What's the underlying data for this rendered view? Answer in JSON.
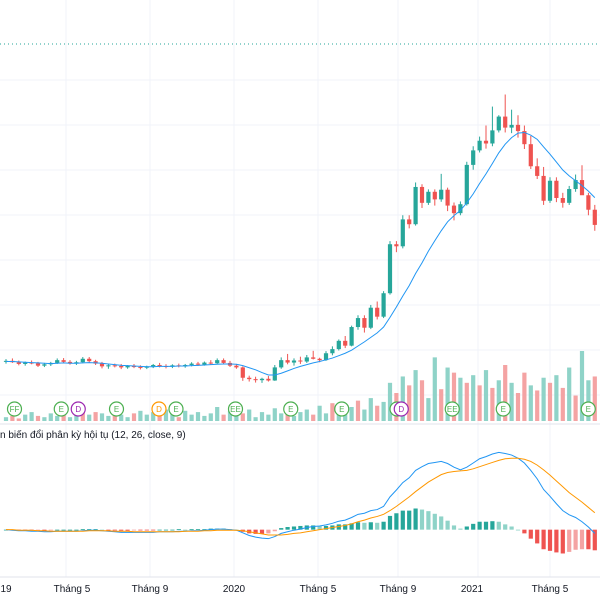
{
  "macd_title": "n biến đổi phân kỳ hội tụ (12, 26, close, 9)",
  "chart_data": {
    "type": "candlestick",
    "title": "",
    "x_tick_labels": [
      "19",
      "Tháng 5",
      "Tháng 9",
      "2020",
      "Tháng 5",
      "Tháng 9",
      "2021",
      "Tháng 5"
    ],
    "colors": {
      "up": "#26a69a",
      "down": "#ef5350",
      "vol_up": "#8fd3c8",
      "vol_down": "#f4a3a3",
      "ma": "#2196f3",
      "macd": "#2196f3",
      "signal": "#ff9800",
      "event_green": "#4caf50",
      "event_purple": "#9c27b0",
      "event_orange": "#ff9800",
      "dotted_line": "#26a69a"
    },
    "price_range": [
      0,
      100
    ],
    "price": [
      [
        12.5,
        13.3,
        12.0,
        12.8
      ],
      [
        12.8,
        13.5,
        12.2,
        12.4
      ],
      [
        12.4,
        12.9,
        11.5,
        11.9
      ],
      [
        11.9,
        12.6,
        11.4,
        12.3
      ],
      [
        12.3,
        12.9,
        11.8,
        12.1
      ],
      [
        12.1,
        12.5,
        11.0,
        11.4
      ],
      [
        11.4,
        12.2,
        11.0,
        11.8
      ],
      [
        11.8,
        12.5,
        11.3,
        12.2
      ],
      [
        12.2,
        13.5,
        11.9,
        13.0
      ],
      [
        13.0,
        13.6,
        12.1,
        12.5
      ],
      [
        12.5,
        13.0,
        11.7,
        12.0
      ],
      [
        12.0,
        12.8,
        11.6,
        12.4
      ],
      [
        12.4,
        13.9,
        12.1,
        13.4
      ],
      [
        13.4,
        13.9,
        12.3,
        12.7
      ],
      [
        12.7,
        13.1,
        11.6,
        12.0
      ],
      [
        12.0,
        12.5,
        10.6,
        11.2
      ],
      [
        11.2,
        11.9,
        10.5,
        11.5
      ],
      [
        11.5,
        12.0,
        10.9,
        11.3
      ],
      [
        11.3,
        11.9,
        10.4,
        10.9
      ],
      [
        10.9,
        11.6,
        10.5,
        11.4
      ],
      [
        11.4,
        11.9,
        10.7,
        11.0
      ],
      [
        11.0,
        11.5,
        10.3,
        10.8
      ],
      [
        10.8,
        11.4,
        10.4,
        11.2
      ],
      [
        11.2,
        11.9,
        10.7,
        11.6
      ],
      [
        11.6,
        12.2,
        10.9,
        11.3
      ],
      [
        11.3,
        11.8,
        10.6,
        11.1
      ],
      [
        11.1,
        11.8,
        10.7,
        11.5
      ],
      [
        11.5,
        12.0,
        10.9,
        11.2
      ],
      [
        11.2,
        11.9,
        10.8,
        11.6
      ],
      [
        11.6,
        12.4,
        11.2,
        12.0
      ],
      [
        12.0,
        12.5,
        11.3,
        11.7
      ],
      [
        11.7,
        12.6,
        11.4,
        12.3
      ],
      [
        12.3,
        13.0,
        11.7,
        12.1
      ],
      [
        12.1,
        13.5,
        11.9,
        13.0
      ],
      [
        13.0,
        13.5,
        11.8,
        12.2
      ],
      [
        12.2,
        12.8,
        11.0,
        11.4
      ],
      [
        11.4,
        11.9,
        10.5,
        10.9
      ],
      [
        10.9,
        11.2,
        7.0,
        7.9
      ],
      [
        7.9,
        8.5,
        6.8,
        7.5
      ],
      [
        7.5,
        8.2,
        6.5,
        7.2
      ],
      [
        7.2,
        7.9,
        6.4,
        7.6
      ],
      [
        7.6,
        8.4,
        6.8,
        7.1
      ],
      [
        7.1,
        11.6,
        7.0,
        10.9
      ],
      [
        10.9,
        13.8,
        10.5,
        13.0
      ],
      [
        13.0,
        14.8,
        11.8,
        12.3
      ],
      [
        12.3,
        13.5,
        11.4,
        12.9
      ],
      [
        12.9,
        14.0,
        11.9,
        12.6
      ],
      [
        12.6,
        14.5,
        12.2,
        13.8
      ],
      [
        13.8,
        15.7,
        13.2,
        13.4
      ],
      [
        13.4,
        13.7,
        12.4,
        13.0
      ],
      [
        13.0,
        15.6,
        12.8,
        15.0
      ],
      [
        15.0,
        17.0,
        14.4,
        16.2
      ],
      [
        16.2,
        19.0,
        15.8,
        18.6
      ],
      [
        18.6,
        20.0,
        16.5,
        17.2
      ],
      [
        17.2,
        23.0,
        17.0,
        22.6
      ],
      [
        22.6,
        26.0,
        21.8,
        25.2
      ],
      [
        25.2,
        26.0,
        21.0,
        22.4
      ],
      [
        22.4,
        29.0,
        22.0,
        28.2
      ],
      [
        28.2,
        30.0,
        24.8,
        25.6
      ],
      [
        25.6,
        33.0,
        25.2,
        32.4
      ],
      [
        32.4,
        47.5,
        32.0,
        46.6
      ],
      [
        46.6,
        47.5,
        44.3,
        46.0
      ],
      [
        46.0,
        55.0,
        45.4,
        53.8
      ],
      [
        53.8,
        55.0,
        51.2,
        52.4
      ],
      [
        52.4,
        64.5,
        52.0,
        63.2
      ],
      [
        63.2,
        64.0,
        57.1,
        58.6
      ],
      [
        58.6,
        62.5,
        58.0,
        61.8
      ],
      [
        61.8,
        62.5,
        57.8,
        59.6
      ],
      [
        59.6,
        67.0,
        58.9,
        62.4
      ],
      [
        62.4,
        63.0,
        56.2,
        57.8
      ],
      [
        57.8,
        58.7,
        53.5,
        55.6
      ],
      [
        55.6,
        59.0,
        55.0,
        58.2
      ],
      [
        58.2,
        70.5,
        57.8,
        69.6
      ],
      [
        69.6,
        75.0,
        68.2,
        73.8
      ],
      [
        73.8,
        77.8,
        73.2,
        76.6
      ],
      [
        76.6,
        81.0,
        74.3,
        75.8
      ],
      [
        75.8,
        86.5,
        75.0,
        79.6
      ],
      [
        79.6,
        84.0,
        79.0,
        83.6
      ],
      [
        83.6,
        90.0,
        79.0,
        80.4
      ],
      [
        80.4,
        85.6,
        78.8,
        81.2
      ],
      [
        81.2,
        84.0,
        77.5,
        79.4
      ],
      [
        79.4,
        81.0,
        74.2,
        75.6
      ],
      [
        75.6,
        78.0,
        68.4,
        69.2
      ],
      [
        69.2,
        71.5,
        65.5,
        66.4
      ],
      [
        66.4,
        69.0,
        58.0,
        59.2
      ],
      [
        59.2,
        66.0,
        58.6,
        65.0
      ],
      [
        65.0,
        66.0,
        58.8,
        60.0
      ],
      [
        60.0,
        61.5,
        57.2,
        58.6
      ],
      [
        58.6,
        63.5,
        58.0,
        62.6
      ],
      [
        62.6,
        66.8,
        61.8,
        65.2
      ],
      [
        65.2,
        69.5,
        64.4,
        60.8
      ],
      [
        60.8,
        61.5,
        55.0,
        56.6
      ],
      [
        56.6,
        58.0,
        50.5,
        52.2
      ]
    ],
    "moving_average": [
      12.6,
      12.6,
      12.5,
      12.4,
      12.3,
      12.2,
      12.1,
      12.0,
      12.1,
      12.2,
      12.1,
      12.1,
      12.2,
      12.3,
      12.2,
      12.1,
      11.9,
      11.7,
      11.5,
      11.4,
      11.3,
      11.2,
      11.1,
      11.1,
      11.2,
      11.2,
      11.2,
      11.3,
      11.3,
      11.4,
      11.5,
      11.6,
      11.7,
      11.8,
      11.9,
      11.9,
      11.8,
      11.4,
      10.8,
      10.2,
      9.4,
      8.7,
      8.7,
      9.2,
      9.9,
      10.6,
      11.2,
      11.7,
      12.2,
      12.6,
      13.1,
      13.6,
      14.3,
      15.0,
      15.9,
      17.1,
      18.3,
      19.6,
      20.9,
      22.6,
      25.4,
      28.4,
      31.6,
      34.6,
      38.1,
      41.2,
      44.6,
      47.6,
      50.5,
      53.1,
      54.9,
      56.4,
      58.6,
      61.2,
      64.2,
      67.0,
      70.0,
      73.1,
      75.6,
      77.5,
      78.8,
      79.0,
      78.2,
      77.0,
      74.8,
      72.7,
      70.4,
      68.1,
      66.4,
      65.0,
      63.6,
      62.0,
      60.1
    ],
    "volume": [
      [
        3,
        "up"
      ],
      [
        4,
        "down"
      ],
      [
        2,
        "down"
      ],
      [
        5,
        "up"
      ],
      [
        7,
        "up"
      ],
      [
        4,
        "down"
      ],
      [
        3,
        "up"
      ],
      [
        6,
        "up"
      ],
      [
        4,
        "up"
      ],
      [
        9,
        "down"
      ],
      [
        3,
        "up"
      ],
      [
        12,
        "up"
      ],
      [
        8,
        "down"
      ],
      [
        5,
        "up"
      ],
      [
        7,
        "down"
      ],
      [
        6,
        "up"
      ],
      [
        4,
        "up"
      ],
      [
        10,
        "down"
      ],
      [
        5,
        "up"
      ],
      [
        3,
        "up"
      ],
      [
        6,
        "down"
      ],
      [
        8,
        "up"
      ],
      [
        5,
        "up"
      ],
      [
        7,
        "up"
      ],
      [
        4,
        "down"
      ],
      [
        9,
        "up"
      ],
      [
        6,
        "up"
      ],
      [
        3,
        "down"
      ],
      [
        8,
        "up"
      ],
      [
        5,
        "up"
      ],
      [
        7,
        "up"
      ],
      [
        4,
        "up"
      ],
      [
        6,
        "up"
      ],
      [
        11,
        "up"
      ],
      [
        5,
        "down"
      ],
      [
        8,
        "up"
      ],
      [
        4,
        "up"
      ],
      [
        6,
        "down"
      ],
      [
        9,
        "up"
      ],
      [
        3,
        "up"
      ],
      [
        7,
        "up"
      ],
      [
        5,
        "up"
      ],
      [
        10,
        "up"
      ],
      [
        6,
        "up"
      ],
      [
        8,
        "down"
      ],
      [
        4,
        "up"
      ],
      [
        7,
        "up"
      ],
      [
        9,
        "up"
      ],
      [
        5,
        "down"
      ],
      [
        12,
        "up"
      ],
      [
        6,
        "up"
      ],
      [
        14,
        "down"
      ],
      [
        8,
        "up"
      ],
      [
        13,
        "up"
      ],
      [
        11,
        "up"
      ],
      [
        16,
        "down"
      ],
      [
        9,
        "up"
      ],
      [
        18,
        "up"
      ],
      [
        12,
        "down"
      ],
      [
        15,
        "up"
      ],
      [
        30,
        "up"
      ],
      [
        22,
        "down"
      ],
      [
        35,
        "up"
      ],
      [
        28,
        "down"
      ],
      [
        40,
        "up"
      ],
      [
        32,
        "down"
      ],
      [
        18,
        "up"
      ],
      [
        50,
        "up"
      ],
      [
        25,
        "down"
      ],
      [
        42,
        "up"
      ],
      [
        38,
        "down"
      ],
      [
        34,
        "up"
      ],
      [
        30,
        "down"
      ],
      [
        36,
        "up"
      ],
      [
        28,
        "down"
      ],
      [
        40,
        "up"
      ],
      [
        26,
        "down"
      ],
      [
        32,
        "up"
      ],
      [
        44,
        "down"
      ],
      [
        30,
        "up"
      ],
      [
        22,
        "down"
      ],
      [
        38,
        "down"
      ],
      [
        28,
        "up"
      ],
      [
        24,
        "down"
      ],
      [
        34,
        "up"
      ],
      [
        30,
        "down"
      ],
      [
        36,
        "up"
      ],
      [
        26,
        "down"
      ],
      [
        42,
        "up"
      ],
      [
        20,
        "down"
      ],
      [
        55,
        "up"
      ],
      [
        32,
        "up"
      ],
      [
        35,
        "down"
      ]
    ],
    "macd_line": [
      0.0,
      -0.1,
      -0.2,
      -0.2,
      -0.3,
      -0.3,
      -0.4,
      -0.4,
      -0.3,
      -0.3,
      -0.3,
      -0.3,
      -0.2,
      -0.1,
      -0.1,
      -0.2,
      -0.3,
      -0.4,
      -0.5,
      -0.5,
      -0.5,
      -0.5,
      -0.5,
      -0.5,
      -0.4,
      -0.4,
      -0.4,
      -0.3,
      -0.3,
      -0.2,
      -0.2,
      -0.1,
      0.0,
      0.1,
      0.1,
      0.0,
      -0.1,
      -0.6,
      -1.1,
      -1.4,
      -1.6,
      -1.7,
      -1.3,
      -0.7,
      -0.4,
      -0.1,
      0.1,
      0.4,
      0.6,
      0.7,
      0.9,
      1.2,
      1.6,
      1.8,
      2.3,
      2.9,
      3.1,
      3.6,
      3.8,
      4.4,
      6.2,
      7.5,
      8.9,
      9.8,
      11.2,
      11.9,
      12.5,
      12.7,
      12.9,
      12.5,
      11.8,
      11.3,
      11.8,
      12.6,
      13.4,
      13.8,
      14.3,
      14.6,
      14.4,
      14.1,
      13.5,
      12.6,
      11.2,
      9.6,
      7.6,
      6.3,
      4.9,
      3.6,
      2.8,
      2.3,
      1.5,
      0.5,
      -0.7
    ],
    "signal_line": [
      0.0,
      0.0,
      -0.1,
      -0.1,
      -0.1,
      -0.2,
      -0.2,
      -0.3,
      -0.3,
      -0.3,
      -0.3,
      -0.3,
      -0.3,
      -0.2,
      -0.2,
      -0.2,
      -0.2,
      -0.3,
      -0.3,
      -0.3,
      -0.4,
      -0.4,
      -0.4,
      -0.4,
      -0.4,
      -0.4,
      -0.4,
      -0.4,
      -0.3,
      -0.3,
      -0.3,
      -0.2,
      -0.2,
      -0.1,
      -0.1,
      -0.1,
      -0.1,
      -0.2,
      -0.4,
      -0.6,
      -0.8,
      -1.0,
      -1.0,
      -1.0,
      -0.9,
      -0.7,
      -0.6,
      -0.4,
      -0.2,
      0.0,
      0.2,
      0.4,
      0.6,
      0.8,
      1.1,
      1.5,
      1.8,
      2.2,
      2.5,
      2.9,
      3.6,
      4.4,
      5.3,
      6.2,
      7.2,
      8.1,
      9.0,
      9.7,
      10.4,
      10.8,
      11.0,
      11.1,
      11.2,
      11.5,
      11.9,
      12.3,
      12.7,
      13.1,
      13.4,
      13.5,
      13.5,
      13.3,
      12.9,
      12.2,
      11.3,
      10.3,
      9.2,
      8.1,
      7.0,
      6.1,
      5.2,
      4.2,
      3.2
    ],
    "macd_range": [
      -8,
      16
    ],
    "events": [
      {
        "label": "FF",
        "color": "green",
        "index": 2
      },
      {
        "label": "E",
        "color": "green",
        "index": 13
      },
      {
        "label": "D",
        "color": "purple",
        "index": 17
      },
      {
        "label": "E",
        "color": "green",
        "index": 26
      },
      {
        "label": "D",
        "color": "orange",
        "index": 36
      },
      {
        "label": "E",
        "color": "green",
        "index": 40
      },
      {
        "label": "EE",
        "color": "green",
        "index": 54
      },
      {
        "label": "E",
        "color": "green",
        "index": 67
      },
      {
        "label": "E",
        "color": "green",
        "index": 79
      },
      {
        "label": "E",
        "color": "green",
        "index": 92
      },
      {
        "label": "D",
        "color": "purple",
        "index": 93
      },
      {
        "label": "EE",
        "color": "green",
        "index": 105
      },
      {
        "label": "E",
        "color": "green",
        "index": 117
      },
      {
        "label": "E",
        "color": "green",
        "index": 137
      }
    ]
  }
}
